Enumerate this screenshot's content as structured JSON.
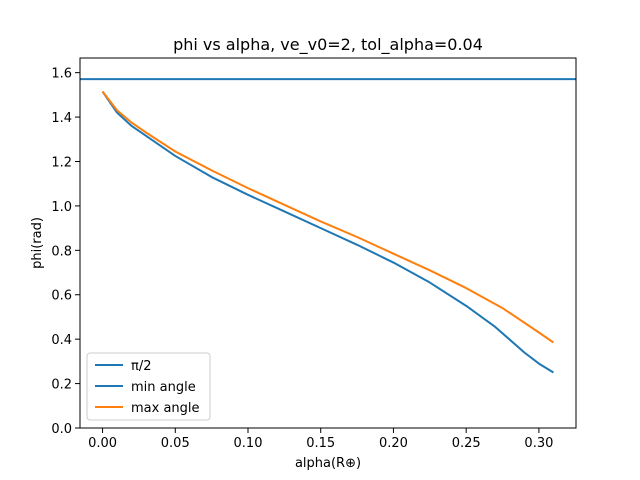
{
  "chart_data": {
    "type": "line",
    "title": "phi vs alpha, ve_v0=2, tol_alpha=0.04",
    "xlabel": "alpha(R⊕)",
    "ylabel": "phi(rad)",
    "xlim": [
      -0.0155,
      0.3255
    ],
    "ylim": [
      0.0,
      1.666
    ],
    "xticks": [
      0.0,
      0.05,
      0.1,
      0.15,
      0.2,
      0.25,
      0.3
    ],
    "xtick_labels": [
      "0.00",
      "0.05",
      "0.10",
      "0.15",
      "0.20",
      "0.25",
      "0.30"
    ],
    "yticks": [
      0.0,
      0.2,
      0.4,
      0.6,
      0.8,
      1.0,
      1.2,
      1.4,
      1.6
    ],
    "ytick_labels": [
      "0.0",
      "0.2",
      "0.4",
      "0.6",
      "0.8",
      "1.0",
      "1.2",
      "1.4",
      "1.6"
    ],
    "grid": false,
    "legend_position": "lower-left",
    "series": [
      {
        "name": "π/2",
        "kind": "hline",
        "y": 1.5708,
        "color": "#1f77b4"
      },
      {
        "name": "min angle",
        "color": "#1f77b4",
        "x": [
          0.0,
          0.01,
          0.02,
          0.03,
          0.05,
          0.075,
          0.1,
          0.125,
          0.15,
          0.175,
          0.2,
          0.225,
          0.25,
          0.27,
          0.29,
          0.3,
          0.31
        ],
        "y": [
          1.515,
          1.42,
          1.36,
          1.315,
          1.225,
          1.13,
          1.05,
          0.975,
          0.9,
          0.825,
          0.745,
          0.655,
          0.55,
          0.455,
          0.34,
          0.29,
          0.25
        ]
      },
      {
        "name": "max angle",
        "color": "#ff7f0e",
        "x": [
          0.0,
          0.01,
          0.02,
          0.03,
          0.05,
          0.075,
          0.1,
          0.125,
          0.15,
          0.175,
          0.2,
          0.225,
          0.25,
          0.275,
          0.3,
          0.31
        ],
        "y": [
          1.515,
          1.43,
          1.375,
          1.33,
          1.245,
          1.16,
          1.08,
          1.005,
          0.93,
          0.86,
          0.785,
          0.71,
          0.63,
          0.54,
          0.43,
          0.385
        ]
      }
    ]
  }
}
